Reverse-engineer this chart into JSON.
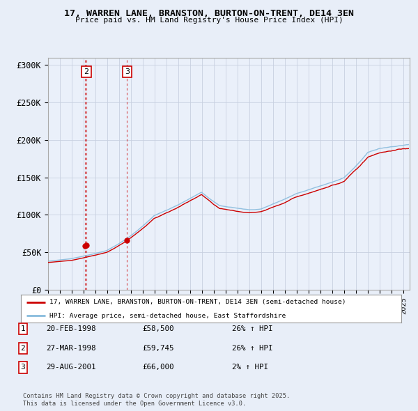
{
  "title": "17, WARREN LANE, BRANSTON, BURTON-ON-TRENT, DE14 3EN",
  "subtitle": "Price paid vs. HM Land Registry's House Price Index (HPI)",
  "ylim": [
    0,
    310000
  ],
  "xlim_start": 1995.0,
  "xlim_end": 2025.5,
  "yticks": [
    0,
    50000,
    100000,
    150000,
    200000,
    250000,
    300000
  ],
  "ytick_labels": [
    "£0",
    "£50K",
    "£100K",
    "£150K",
    "£200K",
    "£250K",
    "£300K"
  ],
  "legend_line1": "17, WARREN LANE, BRANSTON, BURTON-ON-TRENT, DE14 3EN (semi-detached house)",
  "legend_line2": "HPI: Average price, semi-detached house, East Staffordshire",
  "line_color_price": "#cc0000",
  "line_color_hpi": "#88bbdd",
  "marker_color": "#cc0000",
  "annotation_color": "#cc0000",
  "footer1": "Contains HM Land Registry data © Crown copyright and database right 2025.",
  "footer2": "This data is licensed under the Open Government Licence v3.0.",
  "transactions": [
    {
      "num": "1",
      "date": 1998.12,
      "price": 58500,
      "show_label": false
    },
    {
      "num": "2",
      "date": 1998.24,
      "price": 59745,
      "show_label": true
    },
    {
      "num": "3",
      "date": 2001.66,
      "price": 66000,
      "show_label": true
    }
  ],
  "table_rows": [
    {
      "num": "1",
      "date": "20-FEB-1998",
      "price": "£58,500",
      "change": "26% ↑ HPI"
    },
    {
      "num": "2",
      "date": "27-MAR-1998",
      "price": "£59,745",
      "change": "26% ↑ HPI"
    },
    {
      "num": "3",
      "date": "29-AUG-2001",
      "price": "£66,000",
      "change": "2% ↑ HPI"
    }
  ],
  "bg_color": "#e8eef8",
  "plot_bg_color": "#eaf0fa",
  "grid_color": "#c8d0e0"
}
